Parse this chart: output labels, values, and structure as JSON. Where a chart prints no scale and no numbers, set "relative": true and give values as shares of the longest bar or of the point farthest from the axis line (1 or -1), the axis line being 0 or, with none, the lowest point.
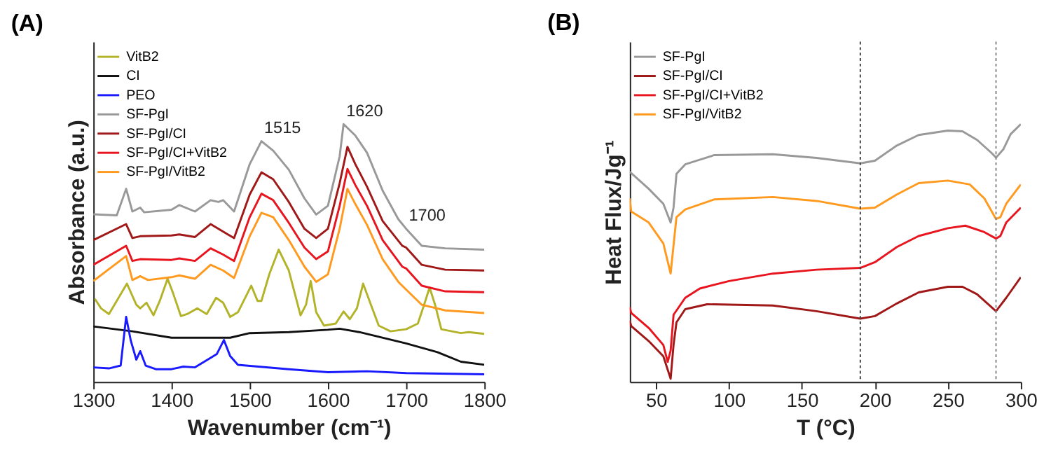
{
  "chart_data": [
    {
      "type": "line",
      "title": "(A)",
      "xlabel": "Wavenumber (cm⁻¹)",
      "ylabel": "Absorbance (a.u.)",
      "relative": true,
      "xlim": [
        1300,
        1800
      ],
      "xticks": [
        1300,
        1400,
        1500,
        1600,
        1700,
        1800
      ],
      "tick_labels": "x",
      "grid": false,
      "legend": "top left",
      "line_style": "solid",
      "marker": "none",
      "series": [
        {
          "name": "VitB2",
          "color": "#b3b32a",
          "x": [
            1302,
            1310,
            1320,
            1343,
            1355,
            1360,
            1368,
            1377,
            1385,
            1395,
            1402,
            1412,
            1420,
            1433,
            1445,
            1457,
            1466,
            1475,
            1485,
            1502,
            1510,
            1515,
            1525,
            1537,
            1550,
            1565,
            1572,
            1578,
            1585,
            1595,
            1610,
            1620,
            1628,
            1637,
            1645,
            1655,
            1665,
            1680,
            1700,
            1715,
            1723,
            1730,
            1737,
            1745,
            1770,
            1780,
            1800
          ],
          "values": [
            0.322,
            0.285,
            0.263,
            0.381,
            0.299,
            0.285,
            0.307,
            0.258,
            0.314,
            0.4,
            0.344,
            0.255,
            0.263,
            0.285,
            0.263,
            0.326,
            0.307,
            0.252,
            0.27,
            0.373,
            0.314,
            0.314,
            0.417,
            0.513,
            0.432,
            0.258,
            0.299,
            0.391,
            0.27,
            0.218,
            0.226,
            0.273,
            0.243,
            0.285,
            0.381,
            0.299,
            0.218,
            0.196,
            0.204,
            0.226,
            0.299,
            0.366,
            0.299,
            0.204,
            0.189,
            0.193,
            0.186
          ]
        },
        {
          "name": "CI",
          "color": "#111111",
          "x": [
            1300,
            1350,
            1400,
            1475,
            1500,
            1550,
            1600,
            1615,
            1640,
            1700,
            1740,
            1770,
            1800
          ],
          "values": [
            0.215,
            0.196,
            0.171,
            0.171,
            0.189,
            0.193,
            0.202,
            0.206,
            0.193,
            0.149,
            0.115,
            0.078,
            0.066
          ]
        },
        {
          "name": "PEO",
          "color": "#1a1aff",
          "x": [
            1300,
            1320,
            1335,
            1342,
            1348,
            1355,
            1360,
            1367,
            1380,
            1400,
            1415,
            1430,
            1450,
            1458,
            1467,
            1475,
            1485,
            1550,
            1600,
            1650,
            1700,
            1800
          ],
          "values": [
            0.056,
            0.052,
            0.063,
            0.252,
            0.159,
            0.086,
            0.119,
            0.063,
            0.049,
            0.049,
            0.059,
            0.056,
            0.093,
            0.108,
            0.162,
            0.1,
            0.066,
            0.049,
            0.037,
            0.041,
            0.034,
            0.029
          ]
        },
        {
          "name": "SF-PgI",
          "color": "#999999",
          "x": [
            1300,
            1330,
            1342,
            1350,
            1360,
            1365,
            1400,
            1410,
            1430,
            1450,
            1460,
            1466,
            1480,
            1500,
            1515,
            1530,
            1550,
            1570,
            1585,
            1600,
            1615,
            1620,
            1635,
            1650,
            1670,
            1690,
            1700,
            1720,
            1750,
            1800
          ],
          "values": [
            0.65,
            0.646,
            0.749,
            0.661,
            0.676,
            0.658,
            0.668,
            0.686,
            0.661,
            0.705,
            0.698,
            0.705,
            0.661,
            0.845,
            0.934,
            0.897,
            0.823,
            0.712,
            0.649,
            0.683,
            0.875,
            1.0,
            0.956,
            0.889,
            0.742,
            0.631,
            0.594,
            0.528,
            0.518,
            0.513
          ]
        },
        {
          "name": "SF-PgI/CI",
          "color": "#a01818",
          "x": [
            1300,
            1342,
            1350,
            1360,
            1400,
            1410,
            1430,
            1450,
            1466,
            1480,
            1500,
            1515,
            1530,
            1550,
            1570,
            1585,
            1600,
            1615,
            1625,
            1635,
            1650,
            1670,
            1695,
            1700,
            1720,
            1750,
            1800
          ],
          "values": [
            0.55,
            0.612,
            0.558,
            0.565,
            0.568,
            0.572,
            0.562,
            0.612,
            0.583,
            0.558,
            0.727,
            0.813,
            0.786,
            0.698,
            0.594,
            0.558,
            0.594,
            0.771,
            0.912,
            0.845,
            0.757,
            0.624,
            0.528,
            0.521,
            0.454,
            0.435,
            0.432
          ]
        },
        {
          "name": "SF-PgI/CI+VitB2",
          "color": "#e8141e",
          "x": [
            1300,
            1342,
            1350,
            1360,
            1400,
            1410,
            1430,
            1450,
            1466,
            1480,
            1500,
            1515,
            1530,
            1550,
            1570,
            1585,
            1600,
            1615,
            1625,
            1635,
            1650,
            1670,
            1695,
            1700,
            1720,
            1750,
            1800
          ],
          "values": [
            0.454,
            0.528,
            0.469,
            0.476,
            0.473,
            0.479,
            0.469,
            0.518,
            0.494,
            0.469,
            0.639,
            0.73,
            0.705,
            0.617,
            0.521,
            0.476,
            0.506,
            0.683,
            0.826,
            0.764,
            0.683,
            0.55,
            0.447,
            0.44,
            0.373,
            0.351,
            0.348
          ]
        },
        {
          "name": "SF-PgI/VitB2",
          "color": "#ff9a1f",
          "x": [
            1300,
            1342,
            1350,
            1360,
            1370,
            1400,
            1410,
            1430,
            1450,
            1466,
            1480,
            1500,
            1515,
            1530,
            1550,
            1570,
            1585,
            1600,
            1615,
            1625,
            1635,
            1650,
            1670,
            1690,
            1700,
            1720,
            1750,
            1800
          ],
          "values": [
            0.391,
            0.488,
            0.395,
            0.41,
            0.395,
            0.406,
            0.413,
            0.4,
            0.454,
            0.432,
            0.403,
            0.565,
            0.656,
            0.639,
            0.55,
            0.447,
            0.388,
            0.417,
            0.594,
            0.749,
            0.69,
            0.609,
            0.476,
            0.388,
            0.358,
            0.299,
            0.277,
            0.267
          ]
        }
      ],
      "annotations": [
        {
          "text": "1515",
          "x": 1515,
          "y": 0.934
        },
        {
          "text": "1620",
          "x": 1620,
          "y": 1.0
        },
        {
          "text": "1700",
          "x": 1700,
          "y": 0.594
        }
      ]
    },
    {
      "type": "line",
      "title": "(B)",
      "xlabel": "T (°C)",
      "ylabel": "Heat Flux/Jg⁻¹",
      "relative": true,
      "xlim": [
        32,
        300
      ],
      "xticks": [
        50,
        100,
        150,
        200,
        250,
        300
      ],
      "tick_labels": "x",
      "grid": false,
      "legend": "top left",
      "line_style": "solid",
      "marker": "none",
      "series": [
        {
          "name": "SF-PgI",
          "color": "#999999",
          "x": [
            32,
            45,
            55,
            60,
            62,
            64,
            70,
            90,
            130,
            160,
            190,
            200,
            215,
            230,
            250,
            260,
            270,
            280,
            283,
            288,
            293,
            300
          ],
          "values": [
            0.815,
            0.749,
            0.691,
            0.618,
            0.676,
            0.807,
            0.844,
            0.88,
            0.883,
            0.869,
            0.848,
            0.858,
            0.917,
            0.958,
            0.975,
            0.972,
            0.939,
            0.888,
            0.87,
            0.902,
            0.961,
            1.0
          ]
        },
        {
          "name": "SF-PgI/CI",
          "color": "#a01818",
          "x": [
            32,
            33,
            45,
            55,
            60,
            62,
            64,
            70,
            85,
            130,
            160,
            190,
            200,
            215,
            230,
            250,
            260,
            270,
            283,
            290,
            300
          ],
          "values": [
            0.238,
            0.216,
            0.158,
            0.099,
            0.012,
            0.143,
            0.231,
            0.282,
            0.301,
            0.296,
            0.274,
            0.245,
            0.255,
            0.304,
            0.347,
            0.369,
            0.369,
            0.34,
            0.274,
            0.326,
            0.406
          ]
        },
        {
          "name": "SF-PgI/CI+VitB2",
          "color": "#e8141e",
          "x": [
            32,
            33,
            45,
            55,
            58,
            60,
            62,
            70,
            80,
            100,
            130,
            160,
            190,
            200,
            215,
            230,
            250,
            262,
            275,
            283,
            286,
            290,
            300
          ],
          "values": [
            0.289,
            0.267,
            0.209,
            0.143,
            0.077,
            0.121,
            0.26,
            0.326,
            0.362,
            0.391,
            0.42,
            0.435,
            0.442,
            0.464,
            0.523,
            0.566,
            0.596,
            0.606,
            0.581,
            0.556,
            0.566,
            0.618,
            0.676
          ]
        },
        {
          "name": "SF-PgI/VitB2",
          "color": "#ff9a1f",
          "x": [
            32,
            33,
            45,
            55,
            60,
            62,
            64,
            70,
            90,
            130,
            160,
            190,
            200,
            215,
            230,
            250,
            265,
            275,
            283,
            286,
            290,
            300
          ],
          "values": [
            0.712,
            0.661,
            0.618,
            0.537,
            0.42,
            0.53,
            0.639,
            0.669,
            0.708,
            0.717,
            0.702,
            0.672,
            0.676,
            0.727,
            0.771,
            0.781,
            0.766,
            0.712,
            0.632,
            0.639,
            0.691,
            0.766
          ]
        }
      ],
      "ref_lines": [
        {
          "axis": "x",
          "value": 190,
          "color": "#444444",
          "line_style": "dotted"
        },
        {
          "axis": "x",
          "value": 283,
          "color": "#888888",
          "line_style": "dotted"
        }
      ]
    }
  ]
}
